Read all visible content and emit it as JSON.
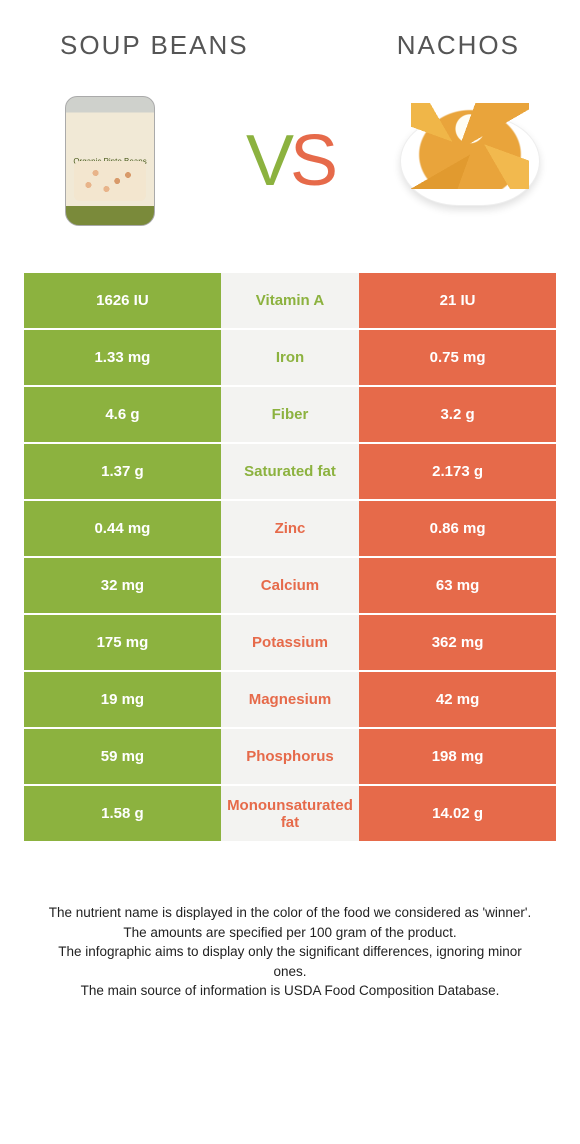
{
  "header": {
    "left_title": "SOUP BEANS",
    "right_title": "NACHOS"
  },
  "vs": {
    "v": "V",
    "s": "S"
  },
  "colors": {
    "green": "#8cb23f",
    "orange": "#e66a4a",
    "mid_bg": "#f3f3f1"
  },
  "left_food_label": "Organic Pinto Beans",
  "rows": [
    {
      "nutrient": "Vitamin A",
      "left": "1626 IU",
      "right": "21 IU",
      "winner": "left"
    },
    {
      "nutrient": "Iron",
      "left": "1.33 mg",
      "right": "0.75 mg",
      "winner": "left"
    },
    {
      "nutrient": "Fiber",
      "left": "4.6 g",
      "right": "3.2 g",
      "winner": "left"
    },
    {
      "nutrient": "Saturated fat",
      "left": "1.37 g",
      "right": "2.173 g",
      "winner": "left"
    },
    {
      "nutrient": "Zinc",
      "left": "0.44 mg",
      "right": "0.86 mg",
      "winner": "right"
    },
    {
      "nutrient": "Calcium",
      "left": "32 mg",
      "right": "63 mg",
      "winner": "right"
    },
    {
      "nutrient": "Potassium",
      "left": "175 mg",
      "right": "362 mg",
      "winner": "right"
    },
    {
      "nutrient": "Magnesium",
      "left": "19 mg",
      "right": "42 mg",
      "winner": "right"
    },
    {
      "nutrient": "Phosphorus",
      "left": "59 mg",
      "right": "198 mg",
      "winner": "right"
    },
    {
      "nutrient": "Monounsaturated fat",
      "left": "1.58 g",
      "right": "14.02 g",
      "winner": "right"
    }
  ],
  "footnotes": [
    "The nutrient name is displayed in the color of the food we considered as 'winner'.",
    "The amounts are specified per 100 gram of the product.",
    "The infographic aims to display only the significant differences, ignoring minor ones.",
    "The main source of information is USDA Food Composition Database."
  ]
}
